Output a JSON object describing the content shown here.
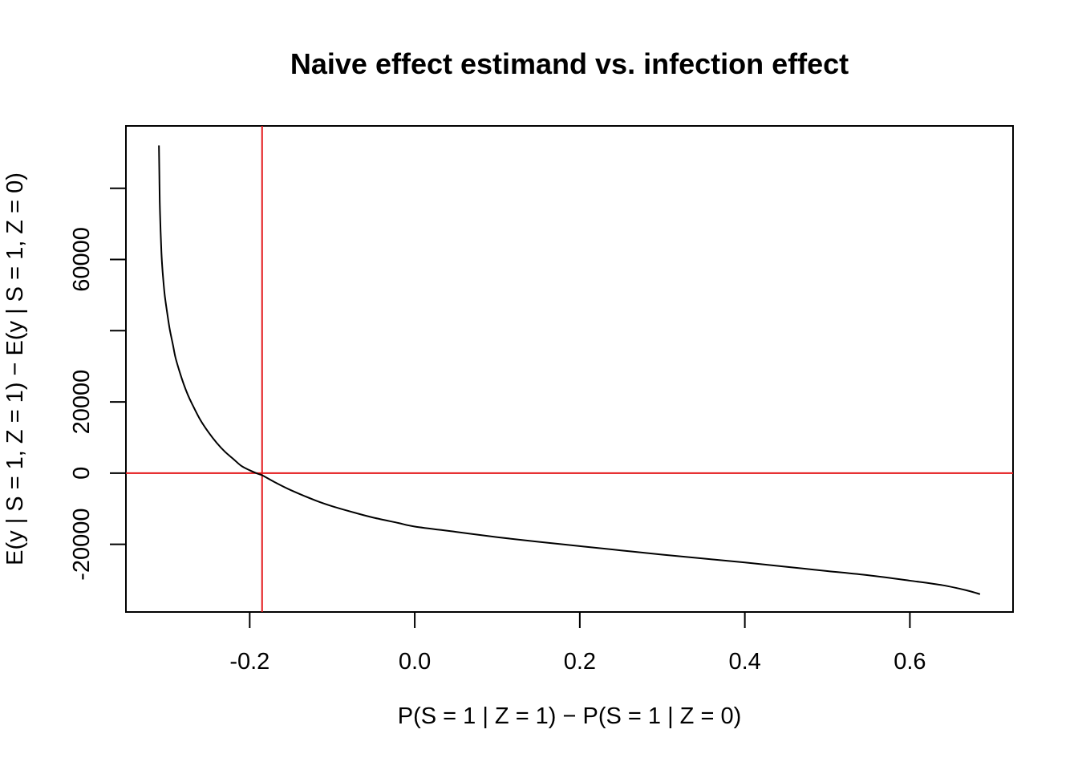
{
  "chart_data": {
    "type": "line",
    "title": "Naive effect estimand vs. infection effect",
    "xlabel": "P(S = 1 | Z = 1) − P(S = 1 | Z = 0)",
    "ylabel": "E(y | S = 1, Z = 1) − E(y | S = 1, Z = 0)",
    "xlim": [
      -0.35,
      0.725
    ],
    "ylim": [
      -39000,
      97500
    ],
    "x_ticks": [
      -0.2,
      0.0,
      0.2,
      0.4,
      0.6
    ],
    "x_tick_labels": [
      "-0.2",
      "0.0",
      "0.2",
      "0.4",
      "0.6"
    ],
    "y_ticks": [
      -20000,
      0,
      20000,
      40000,
      60000,
      80000
    ],
    "y_tick_labels": [
      "-20000",
      "0",
      "20000",
      "",
      "60000",
      ""
    ],
    "grid": false,
    "legend": "none",
    "colors": {
      "series": "#000000",
      "reference_lines": "#e41a1c",
      "axes": "#000000"
    },
    "reference_lines": [
      {
        "orientation": "vertical",
        "x": -0.185
      },
      {
        "orientation": "horizontal",
        "y": 0
      }
    ],
    "series": [
      {
        "x": [
          -0.31,
          -0.3095,
          -0.309,
          -0.308,
          -0.307,
          -0.306,
          -0.305,
          -0.303,
          -0.3,
          -0.297,
          -0.293,
          -0.29,
          -0.285,
          -0.28,
          -0.275,
          -0.27,
          -0.26,
          -0.25,
          -0.24,
          -0.23,
          -0.22,
          -0.21,
          -0.2,
          -0.19,
          -0.185,
          -0.17,
          -0.15,
          -0.12,
          -0.1,
          -0.07,
          -0.05,
          -0.02,
          0.0,
          0.05,
          0.1,
          0.15,
          0.2,
          0.25,
          0.3,
          0.35,
          0.4,
          0.45,
          0.5,
          0.55,
          0.6,
          0.64,
          0.67,
          0.685
        ],
        "y": [
          92000,
          84000,
          76000,
          68000,
          62000,
          58000,
          55000,
          50000,
          45000,
          40500,
          36000,
          32500,
          28500,
          25000,
          22000,
          19500,
          15000,
          11500,
          8500,
          6000,
          4000,
          2000,
          800,
          -200,
          -600,
          -2500,
          -4800,
          -7700,
          -9300,
          -11300,
          -12500,
          -14000,
          -15000,
          -16500,
          -18000,
          -19300,
          -20500,
          -21700,
          -22900,
          -24000,
          -25100,
          -26300,
          -27500,
          -28700,
          -30200,
          -31500,
          -33000,
          -34000
        ]
      }
    ]
  }
}
